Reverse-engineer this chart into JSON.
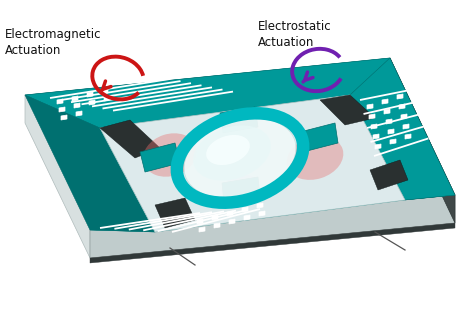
{
  "background_color": "#ffffff",
  "chip_teal": "#009999",
  "chip_teal_dark": "#007070",
  "chip_side_white": "#d8e0e0",
  "chip_side_dark": "#404848",
  "chip_bottom_dark": "#303838",
  "cavity_color": "#e8f0f0",
  "mirror_ring_color": "#00b8c0",
  "mirror_fill": "#e0f0f0",
  "mirror_shine": "#f8ffff",
  "dark_notch": "#2a3030",
  "red_glow": "#e87070",
  "purple_glow": "#c0a0e0",
  "em_arrow_color": "#cc1515",
  "es_arrow_color": "#7020b0",
  "white_line": "#ffffff",
  "em_label": "Electromagnetic\nActuation",
  "es_label": "Electrostatic\nActuation",
  "label_color": "#111111",
  "pointer_color": "#555555"
}
